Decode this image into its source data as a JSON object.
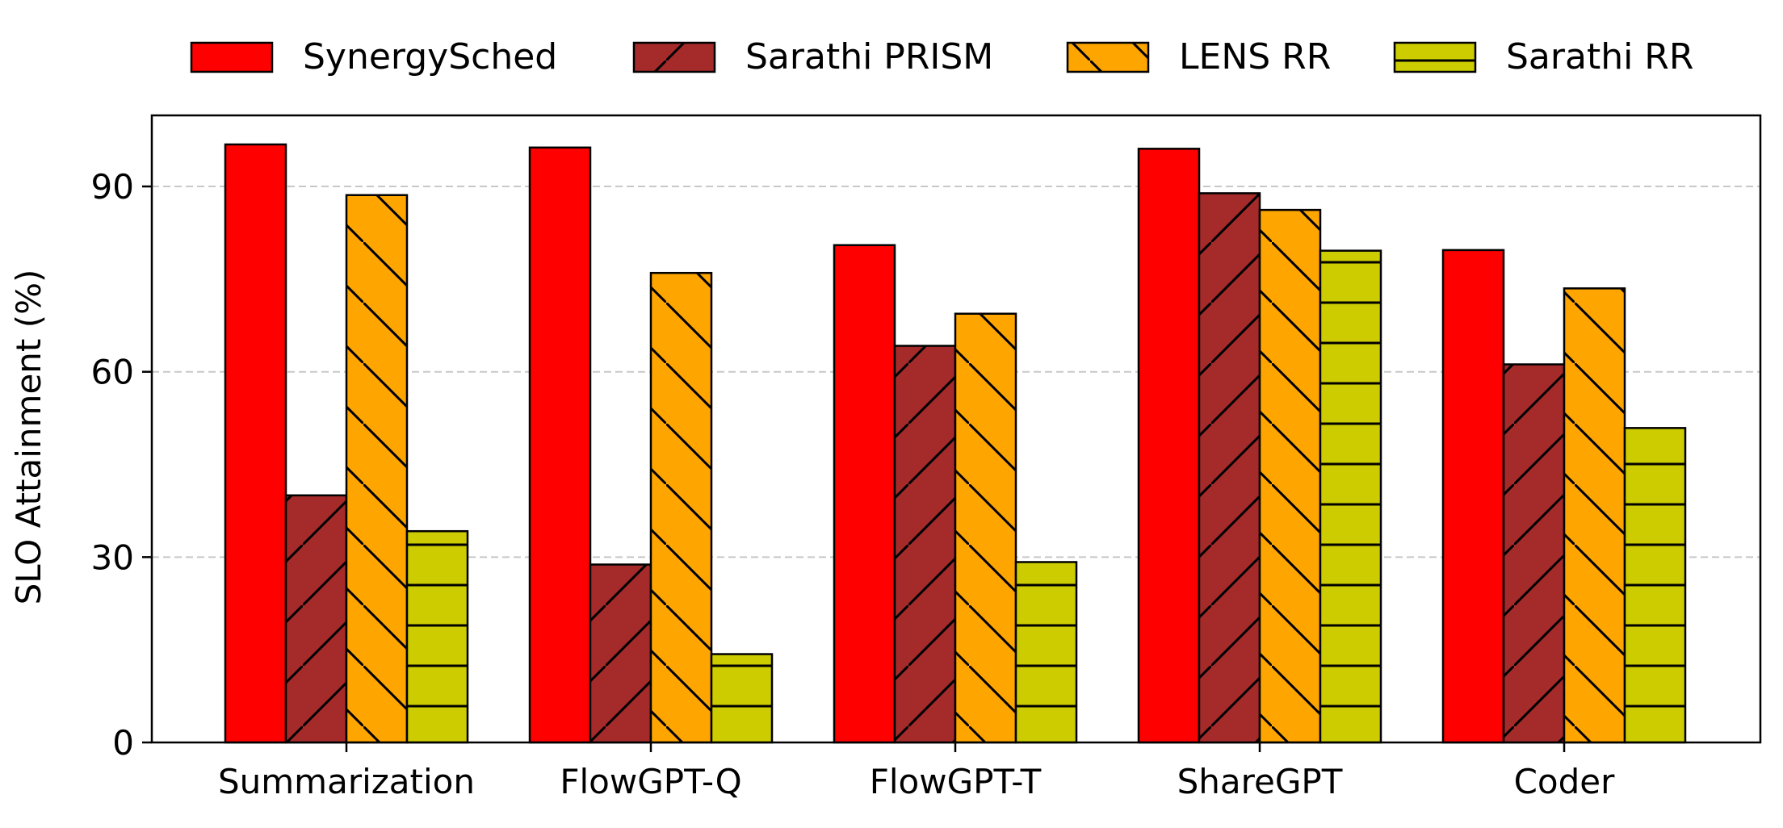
{
  "chart_data": {
    "type": "bar",
    "title": "",
    "xlabel": "",
    "ylabel": "SLO Attainment (%)",
    "ylim": [
      0,
      101.5
    ],
    "yticks": [
      0,
      30,
      60,
      90
    ],
    "grid": "horizontal dashed",
    "legend_position": "top",
    "categories": [
      "Summarization",
      "FlowGPT-Q",
      "FlowGPT-T",
      "ShareGPT",
      "Coder"
    ],
    "series": [
      {
        "name": "SynergySched",
        "color": "#ff0000",
        "hatch": "none",
        "values": [
          96.8,
          96.3,
          80.5,
          96.1,
          79.7
        ]
      },
      {
        "name": "Sarathi PRISM",
        "color": "#a52a2a",
        "hatch": "forward-slash",
        "values": [
          40.0,
          28.8,
          64.2,
          88.9,
          61.2
        ]
      },
      {
        "name": "LENS RR",
        "color": "#ffa500",
        "hatch": "back-slash",
        "values": [
          88.6,
          76.0,
          69.4,
          86.2,
          73.5
        ]
      },
      {
        "name": "Sarathi RR",
        "color": "#cccc00",
        "hatch": "horizontal",
        "values": [
          34.2,
          14.3,
          29.2,
          79.6,
          50.9
        ]
      }
    ]
  }
}
